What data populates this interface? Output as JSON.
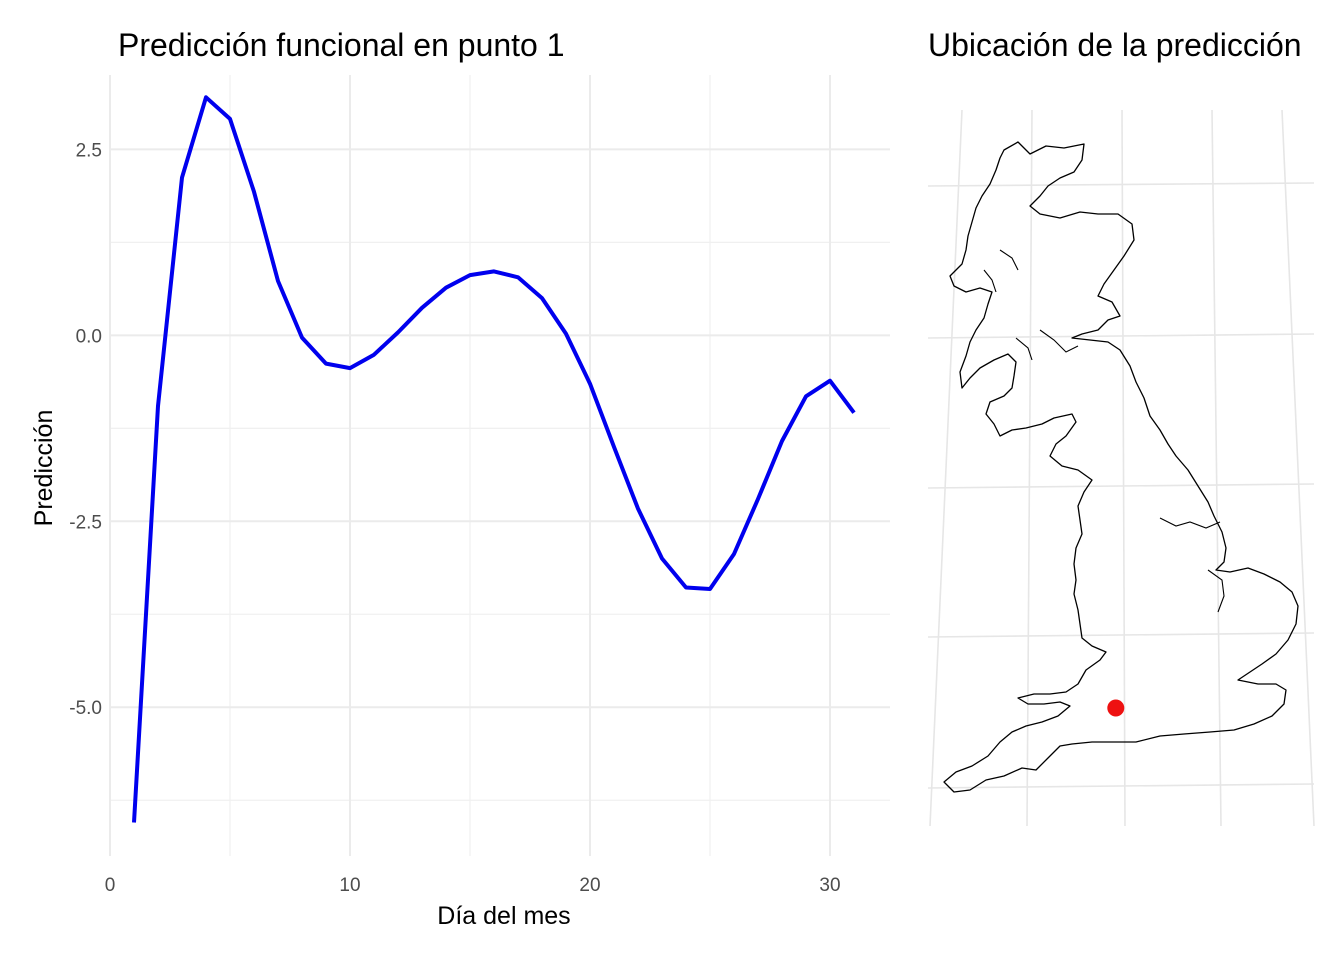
{
  "chart_data": [
    {
      "type": "line",
      "title": "Predicción funcional en punto 1",
      "xlabel": "Día del mes",
      "ylabel": "Predicción",
      "xlim": [
        0,
        32.5
      ],
      "ylim": [
        -7,
        3.5
      ],
      "x_ticks": [
        0,
        10,
        20,
        30
      ],
      "x_tick_labels": [
        "0",
        "10",
        "20",
        "30"
      ],
      "y_ticks": [
        -5,
        -2.5,
        0,
        2.5
      ],
      "y_tick_labels": [
        "-5.0",
        "-2.5",
        "0.0",
        "2.5"
      ],
      "grid": true,
      "series": [
        {
          "color": "#0000ee",
          "x": [
            1,
            2,
            3,
            4,
            5,
            6,
            7,
            8,
            9,
            10,
            11,
            12,
            13,
            14,
            15,
            16,
            17,
            18,
            19,
            20,
            21,
            22,
            23,
            24,
            25,
            26,
            27,
            28,
            29,
            30,
            31
          ],
          "values": [
            -6.55,
            -0.95,
            2.12,
            3.2,
            2.91,
            1.93,
            0.73,
            -0.03,
            -0.38,
            -0.44,
            -0.26,
            0.04,
            0.37,
            0.64,
            0.81,
            0.86,
            0.78,
            0.5,
            0.02,
            -0.65,
            -1.5,
            -2.33,
            -3.0,
            -3.39,
            -3.41,
            -2.94,
            -2.2,
            -1.42,
            -0.82,
            -0.61,
            -1.04
          ]
        }
      ]
    },
    {
      "type": "map",
      "title": "Ubicación de la predicción",
      "region": "Great Britain",
      "grid": true,
      "colors": {
        "outline": "#000000",
        "marker": "#ee1111",
        "graticule": "#e6e6e6"
      },
      "marker": {
        "longitude": -2.2,
        "latitude": 50.8
      }
    }
  ]
}
